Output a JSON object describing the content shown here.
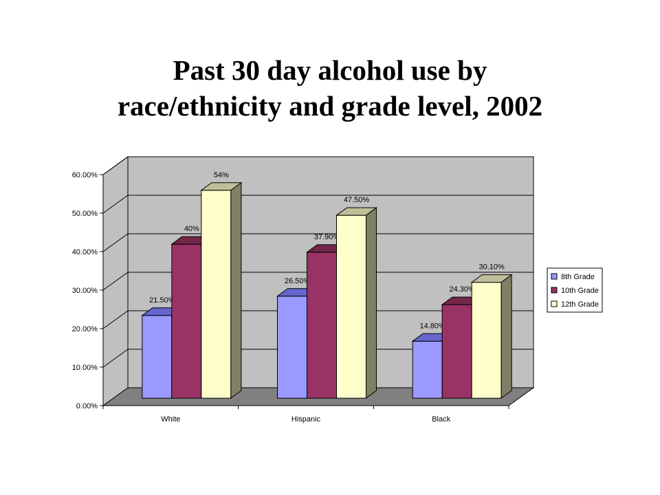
{
  "title": {
    "line1": "Past 30 day alcohol use by",
    "line2": "race/ethnicity and grade level, 2002"
  },
  "chart_data": {
    "type": "bar",
    "title": "Past 30 day alcohol use by race/ethnicity and grade level, 2002",
    "xlabel": "",
    "ylabel": "",
    "ylim": [
      0,
      60
    ],
    "y_ticks": [
      0,
      10,
      20,
      30,
      40,
      50,
      60
    ],
    "y_tick_labels": [
      "0.00%",
      "10.00%",
      "20.00%",
      "30.00%",
      "40.00%",
      "50.00%",
      "60.00%"
    ],
    "categories": [
      "White",
      "Hispanic",
      "Black"
    ],
    "series": [
      {
        "name": "8th Grade",
        "values": [
          21.5,
          26.5,
          14.8
        ],
        "labels": [
          "21.50%",
          "26.50%",
          "14.80%"
        ],
        "color": "#9999ff",
        "top": "#6666cc",
        "side": "#4d4d99"
      },
      {
        "name": "10th Grade",
        "values": [
          40,
          37.9,
          24.3
        ],
        "labels": [
          "40%",
          "37.90%",
          "24.30%"
        ],
        "color": "#993366",
        "top": "#732649",
        "side": "#5c1e3b"
      },
      {
        "name": "12th Grade",
        "values": [
          54,
          47.5,
          30.1
        ],
        "labels": [
          "54%",
          "47.50%",
          "30.10%"
        ],
        "color": "#ffffcc",
        "top": "#bfbf99",
        "side": "#808066"
      }
    ],
    "grid": true,
    "legend": "right",
    "wall_color": "#c0c0c0",
    "floor_color": "#808080"
  }
}
